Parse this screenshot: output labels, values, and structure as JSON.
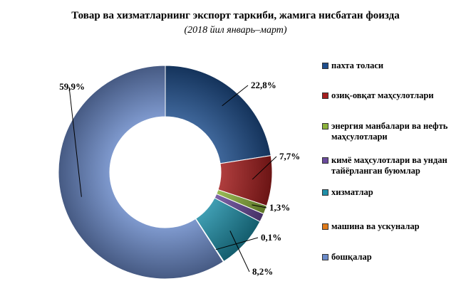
{
  "chart_data": {
    "type": "pie",
    "donut": true,
    "title": "Товар ва хизматларнинг экспорт таркиби, жамига нисбатан фоизда",
    "subtitle": "(2018 йил январь–март)",
    "legend_position": "right",
    "slices": [
      {
        "label": "пахта толаси",
        "value": 22.8,
        "data_label": "22,8%",
        "color": "#1f4e8c"
      },
      {
        "label": "озиқ-овқат маҳсулотлари",
        "value": 7.7,
        "data_label": "7,7%",
        "color": "#a51e1e"
      },
      {
        "label": "энергия манбалари ва нефть маҳсулотлари",
        "value": 1.3,
        "data_label": "1,3%",
        "color": "#8cb23c"
      },
      {
        "label": "кимё маҳсулотлари ва ундан тайёрланган буюмлар",
        "value": 1.3,
        "data_label": "",
        "color": "#6a4a9c"
      },
      {
        "label": "хизматлар",
        "value": 8.2,
        "data_label": "8,2%",
        "color": "#1f8fa8"
      },
      {
        "label": "машина ва ускуналар",
        "value": 0.1,
        "data_label": "0,1%",
        "color": "#e07b1a"
      },
      {
        "label": "бошқалар",
        "value": 59.9,
        "data_label": "59,9%",
        "color": "#6b8bc9"
      }
    ]
  }
}
